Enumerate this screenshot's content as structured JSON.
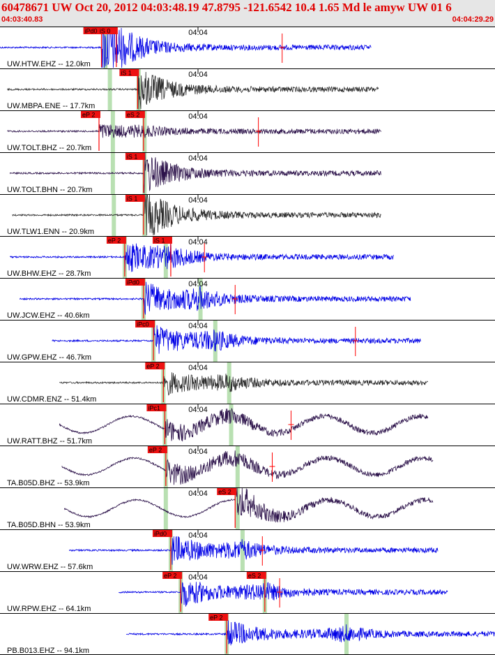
{
  "header": {
    "title": "60478671 UW Oct 20, 2012 04:03:48.19   47.8795 -121.6542 10.4 1.65 Md le amyw UW 01   6",
    "start_time": "04:03:40.83",
    "end_time": "04:04:29.29"
  },
  "colors": {
    "header_bg": "#e6e6e6",
    "header_text": "#e00000",
    "pick_box": "#ee1111",
    "pick_line": "#ff0000",
    "theory_band": "#b9e0b2",
    "blue": "#0000e6",
    "gray": "#2a2a2a",
    "purple": "#2c124a"
  },
  "traces": [
    {
      "station": "UW.HTW.EHZ -- 12.0km",
      "tick_label": "04:04",
      "color": "blue",
      "amp": 28,
      "picks": [
        {
          "label": "iPd0",
          "pos": 0.205
        },
        {
          "label": "iS 0",
          "pos": 0.235
        }
      ],
      "bands": [
        0.213
      ],
      "extra_red": [
        0.57
      ],
      "extent": [
        0,
        0.75
      ]
    },
    {
      "station": "UW.MBPA.ENE -- 17.7km",
      "tick_label": "04:04",
      "color": "gray",
      "amp": 20,
      "picks": [
        {
          "label": "iS 1",
          "pos": 0.278
        }
      ],
      "bands": [
        0.222,
        0.28
      ],
      "extra_red": [],
      "extent": [
        0.015,
        0.765
      ]
    },
    {
      "station": "UW.TOLT.BHZ -- 20.7km",
      "tick_label": "04:04",
      "color": "purple",
      "amp": 8,
      "picks": [
        {
          "label": "eP 2",
          "pos": 0.2
        },
        {
          "label": "eS 2",
          "pos": 0.29
        }
      ],
      "bands": [
        0.228,
        0.292
      ],
      "extra_red": [
        0.522
      ],
      "extent": [
        0.015,
        0.77
      ]
    },
    {
      "station": "UW.TOLT.BHN -- 20.7km",
      "tick_label": "04:04",
      "color": "purple",
      "amp": 20,
      "picks": [
        {
          "label": "iS 1",
          "pos": 0.29
        }
      ],
      "bands": [
        0.228,
        0.292
      ],
      "extra_red": [],
      "extent": [
        0.02,
        0.77
      ]
    },
    {
      "station": "UW.TLW1.ENN -- 20.9km",
      "tick_label": "04:04",
      "color": "gray",
      "amp": 24,
      "picks": [
        {
          "label": "iS 1",
          "pos": 0.29
        }
      ],
      "bands": [
        0.23,
        0.292
      ],
      "extra_red": [],
      "extent": [
        0.025,
        0.77
      ]
    },
    {
      "station": "UW.BHW.EHZ -- 28.7km",
      "tick_label": "04:04",
      "color": "blue",
      "amp": 20,
      "picks": [
        {
          "label": "eP 2",
          "pos": 0.252
        },
        {
          "label": "iS 1",
          "pos": 0.345
        }
      ],
      "bands": [
        0.252,
        0.335
      ],
      "extra_red": [
        0.413
      ],
      "extent": [
        0.02,
        0.795
      ]
    },
    {
      "station": "UW.JCW.EHZ -- 40.6km",
      "tick_label": "04:04",
      "color": "blue",
      "amp": 22,
      "picks": [
        {
          "label": "iPd0",
          "pos": 0.29
        }
      ],
      "bands": [
        0.29,
        0.405
      ],
      "extra_red": [
        0.475
      ],
      "extent": [
        0.04,
        0.83
      ]
    },
    {
      "station": "UW.GPW.EHZ -- 46.7km",
      "tick_label": "04:04",
      "color": "blue",
      "amp": 20,
      "picks": [
        {
          "label": "iPc0",
          "pos": 0.31
        }
      ],
      "bands": [
        0.31,
        0.435
      ],
      "extra_red": [
        0.718
      ],
      "extent": [
        0.105,
        0.85
      ]
    },
    {
      "station": "UW.CDMR.ENZ -- 51.4km",
      "tick_label": "04:04",
      "color": "gray",
      "amp": 16,
      "picks": [
        {
          "label": "eP 2",
          "pos": 0.33
        }
      ],
      "bands": [
        0.33,
        0.463
      ],
      "extra_red": [],
      "extent": [
        0.12,
        0.865
      ]
    },
    {
      "station": "UW.RATT.BHZ -- 51.7km",
      "tick_label": "04:04",
      "color": "purple",
      "amp": 14,
      "wave": true,
      "picks": [
        {
          "label": "iPc1",
          "pos": 0.333
        }
      ],
      "bands": [
        0.333,
        0.467
      ],
      "extra_red": [
        0.588
      ],
      "extent": [
        0.12,
        0.865
      ]
    },
    {
      "station": "TA.B05D.BHZ -- 53.9km",
      "tick_label": "04:04",
      "color": "purple",
      "amp": 16,
      "wave": true,
      "picks": [
        {
          "label": "eP 2",
          "pos": 0.335
        }
      ],
      "bands": [
        0.335,
        0.48
      ],
      "extra_red": [
        0.55
      ],
      "extent": [
        0.125,
        0.875
      ]
    },
    {
      "station": "TA.B05D.BHN -- 53.9km",
      "tick_label": "04:04",
      "color": "purple",
      "amp": 16,
      "wave": true,
      "picks": [
        {
          "label": "eS 2",
          "pos": 0.475
        }
      ],
      "bands": [
        0.335,
        0.48
      ],
      "extra_red": [],
      "extent": [
        0.13,
        0.875
      ]
    },
    {
      "station": "UW.WRW.EHZ -- 57.6km",
      "tick_label": "04:04",
      "color": "blue",
      "amp": 20,
      "picks": [
        {
          "label": "iPd0",
          "pos": 0.345
        }
      ],
      "bands": [
        0.345,
        0.49
      ],
      "extra_red": [
        0.53
      ],
      "extent": [
        0.14,
        0.885
      ]
    },
    {
      "station": "UW.RPW.EHZ -- 64.1km",
      "tick_label": "04:04",
      "color": "blue",
      "amp": 20,
      "picks": [
        {
          "label": "eP 2",
          "pos": 0.365
        },
        {
          "label": "eS 2",
          "pos": 0.535
        }
      ],
      "bands": [
        0.365,
        0.535
      ],
      "extra_red": [
        0.565
      ],
      "extent": [
        0.24,
        0.905
      ]
    },
    {
      "station": "PB.B013.EHZ -- 94.1km",
      "tick_label": "",
      "color": "blue",
      "amp": 18,
      "picks": [
        {
          "label": "eP 2",
          "pos": 0.458
        }
      ],
      "bands": [
        0.458,
        0.7
      ],
      "extra_red": [],
      "extent": [
        0.255,
        1.0
      ]
    }
  ]
}
